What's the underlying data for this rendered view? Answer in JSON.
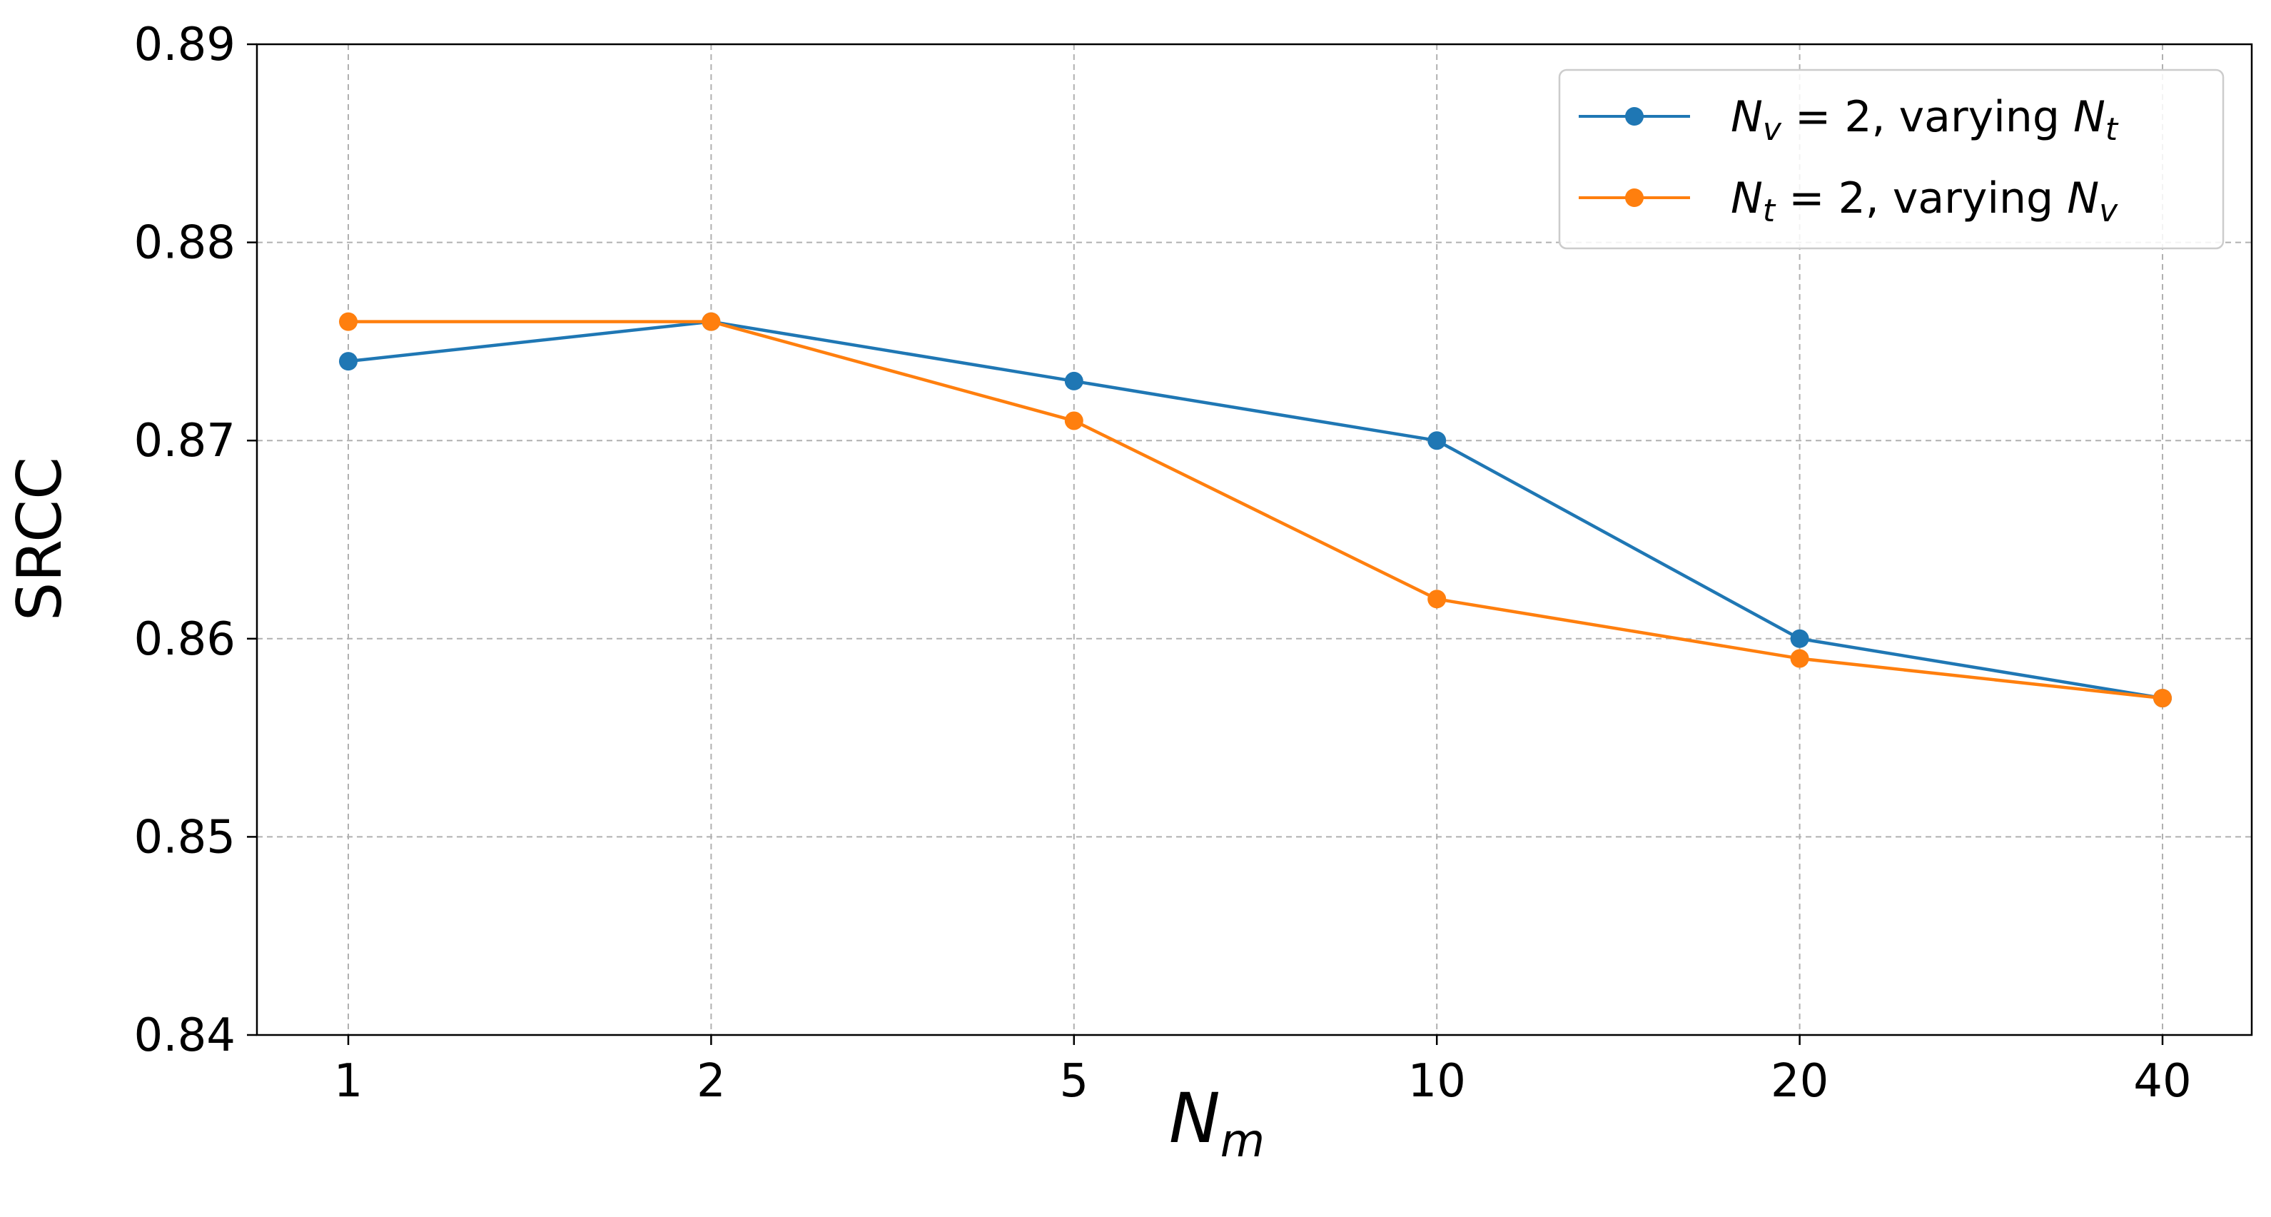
{
  "chart_data": {
    "type": "line",
    "categories": [
      "1",
      "2",
      "5",
      "10",
      "20",
      "40"
    ],
    "ylabel": "SRCC",
    "xlabel": {
      "main": "N",
      "sub": "m"
    },
    "ylim": [
      0.84,
      0.89
    ],
    "yticks": [
      "0.84",
      "0.85",
      "0.86",
      "0.87",
      "0.88",
      "0.89"
    ],
    "grid": true,
    "legend_position": "top-right",
    "series": [
      {
        "legend": {
          "a": "N",
          "a_sub": "v",
          "eq": " = 2, varying ",
          "b": "N",
          "b_sub": "t"
        },
        "color": "#1f77b4",
        "values": [
          0.874,
          0.876,
          0.873,
          0.87,
          0.86,
          0.857
        ]
      },
      {
        "legend": {
          "a": "N",
          "a_sub": "t",
          "eq": " = 2, varying ",
          "b": "N",
          "b_sub": "v"
        },
        "color": "#ff7f0e",
        "values": [
          0.876,
          0.876,
          0.871,
          0.862,
          0.859,
          0.857
        ]
      }
    ]
  }
}
